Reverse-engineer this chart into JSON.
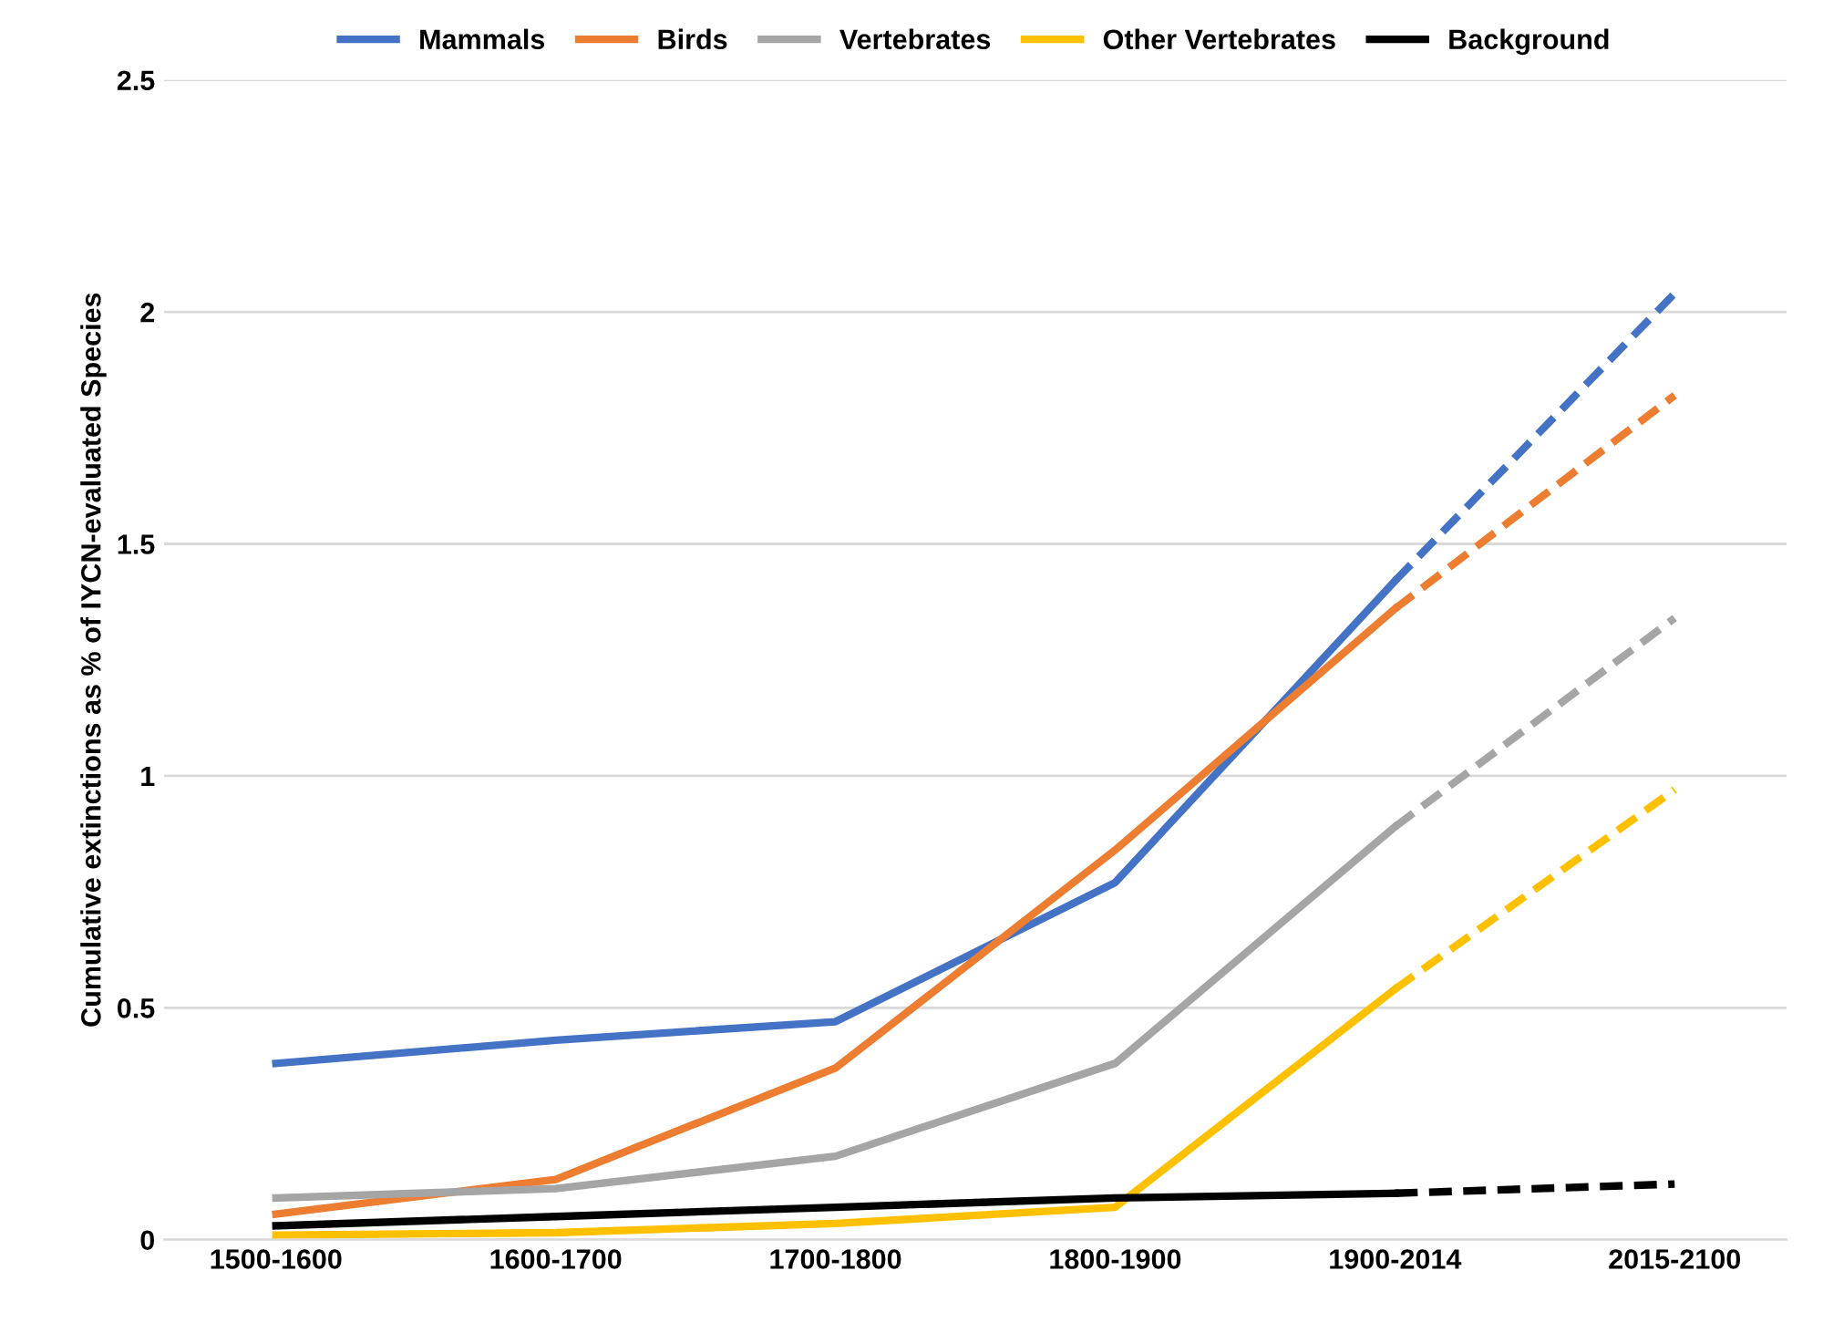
{
  "chart_data": {
    "type": "line",
    "ylabel": "Cumulative extinctions as % of IYCN-evaluated Species",
    "categories": [
      "1500-1600",
      "1600-1700",
      "1700-1800",
      "1800-1900",
      "1900-2014",
      "2015-2100"
    ],
    "ylim": [
      0,
      2.5
    ],
    "yticks": [
      0,
      0.5,
      1,
      1.5,
      2,
      2.5
    ],
    "grid": "y",
    "legend": "top",
    "marker": "none",
    "series": [
      {
        "name": "Mammals",
        "color": "#4472c4",
        "values": [
          0.38,
          0.43,
          0.47,
          0.77,
          1.42,
          null
        ]
      },
      {
        "name": "Birds",
        "color": "#ed7d31",
        "values": [
          0.055,
          0.13,
          0.37,
          0.84,
          1.36,
          null
        ]
      },
      {
        "name": "Vertebrates",
        "color": "#a5a5a5",
        "values": [
          0.09,
          0.11,
          0.18,
          0.38,
          0.89,
          null
        ]
      },
      {
        "name": "Other Vertebrates",
        "color": "#ffc000",
        "values": [
          0.01,
          0.015,
          0.035,
          0.07,
          0.54,
          null
        ]
      },
      {
        "name": "Background",
        "color": "#000000",
        "values": [
          0.03,
          0.05,
          0.07,
          0.09,
          0.1,
          null
        ]
      },
      {
        "color": "#4472c4",
        "line_style": "dashed",
        "values": [
          null,
          null,
          null,
          null,
          1.42,
          2.04
        ]
      },
      {
        "color": "#ed7d31",
        "line_style": "dashed",
        "values": [
          null,
          null,
          null,
          null,
          1.36,
          1.82
        ]
      },
      {
        "color": "#a5a5a5",
        "line_style": "dashed",
        "values": [
          null,
          null,
          null,
          null,
          0.89,
          1.34
        ]
      },
      {
        "color": "#ffc000",
        "line_style": "dashed",
        "values": [
          null,
          null,
          null,
          null,
          0.54,
          0.97
        ]
      },
      {
        "color": "#000000",
        "line_style": "dashed",
        "values": [
          null,
          null,
          null,
          null,
          0.1,
          0.12
        ]
      }
    ]
  }
}
